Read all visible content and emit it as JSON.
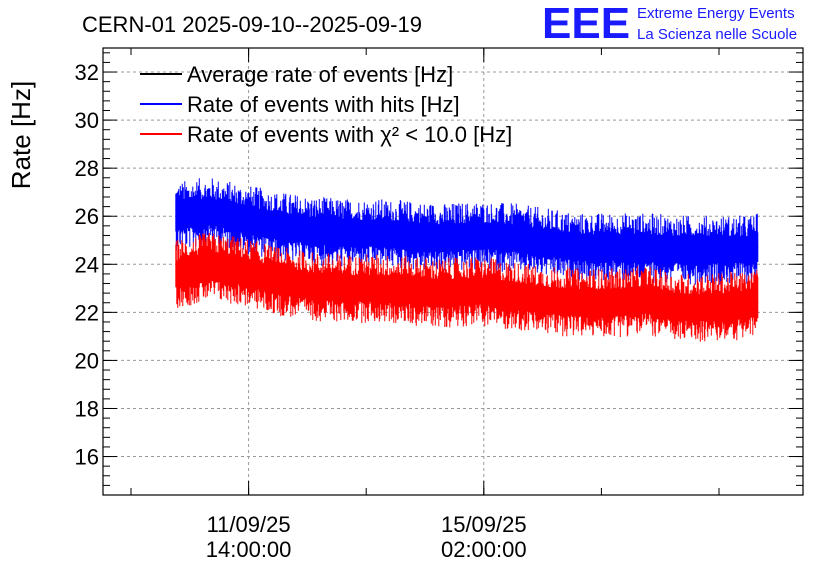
{
  "chart_data": {
    "type": "line",
    "title": "CERN-01 2025-09-10--2025-09-19",
    "ylabel": "Rate [Hz]",
    "xlabel": "",
    "ylim": [
      14.4,
      33
    ],
    "yticks": [
      "16",
      "18",
      "20",
      "22",
      "24",
      "26",
      "28",
      "30",
      "32"
    ],
    "xticks": [
      {
        "date": "11/09/25",
        "time": "14:00:00",
        "x": "2025-09-11 14:00:00"
      },
      {
        "date": "15/09/25",
        "time": "02:00:00",
        "x": "2025-09-15 02:00:00"
      }
    ],
    "xlim": [
      "2025-09-09 10:00:00",
      "2025-09-19 20:00:00"
    ],
    "grid": true,
    "legend_position": "top-left",
    "legend": [
      {
        "label": "Average rate of events [Hz]",
        "color": "#000000"
      },
      {
        "label": "Rate of events with hits [Hz]",
        "color": "#0000ff"
      },
      {
        "label": "Rate of events with χ² < 10.0 [Hz]",
        "color": "#ff0000"
      }
    ],
    "series": [
      {
        "name": "Rate of events with hits [Hz]",
        "color": "#0000ff",
        "x": [
          "2025-09-10 12:00",
          "2025-09-11 00:00",
          "2025-09-11 12:00",
          "2025-09-12 00:00",
          "2025-09-12 12:00",
          "2025-09-13 00:00",
          "2025-09-13 12:00",
          "2025-09-14 00:00",
          "2025-09-14 12:00",
          "2025-09-15 00:00",
          "2025-09-15 12:00",
          "2025-09-16 00:00",
          "2025-09-16 12:00",
          "2025-09-17 00:00",
          "2025-09-17 12:00",
          "2025-09-18 00:00",
          "2025-09-18 12:00",
          "2025-09-19 00:00",
          "2025-09-19 04:00"
        ],
        "values": [
          26.0,
          26.2,
          25.9,
          25.6,
          25.4,
          25.3,
          25.3,
          25.2,
          25.1,
          25.2,
          25.1,
          24.9,
          24.7,
          24.7,
          24.7,
          24.6,
          24.6,
          24.6,
          24.7
        ],
        "band": 1.0
      },
      {
        "name": "Rate of events with χ² < 10.0 [Hz]",
        "color": "#ff0000",
        "x": [
          "2025-09-10 12:00",
          "2025-09-11 00:00",
          "2025-09-11 12:00",
          "2025-09-12 00:00",
          "2025-09-12 12:00",
          "2025-09-13 00:00",
          "2025-09-13 12:00",
          "2025-09-14 00:00",
          "2025-09-14 12:00",
          "2025-09-15 00:00",
          "2025-09-15 12:00",
          "2025-09-16 00:00",
          "2025-09-16 12:00",
          "2025-09-17 00:00",
          "2025-09-17 12:00",
          "2025-09-18 00:00",
          "2025-09-18 12:00",
          "2025-09-19 00:00",
          "2025-09-19 04:00"
        ],
        "values": [
          23.6,
          23.9,
          23.7,
          23.3,
          23.1,
          23.0,
          23.0,
          22.9,
          22.8,
          22.9,
          22.7,
          22.5,
          22.4,
          22.4,
          22.5,
          22.2,
          22.2,
          22.3,
          22.4
        ],
        "band": 1.0
      }
    ]
  },
  "logo": {
    "text": "EEE",
    "line1": "Extreme Energy Events",
    "line2": "La Scienza nelle Scuole"
  }
}
